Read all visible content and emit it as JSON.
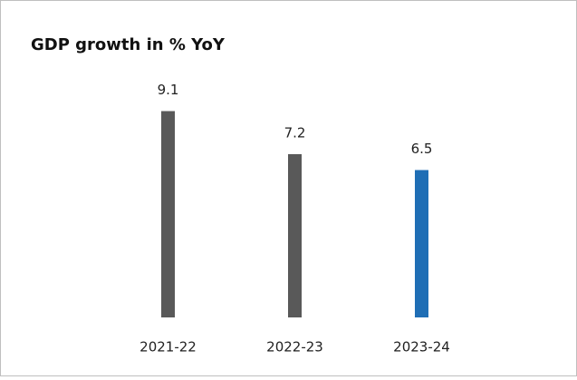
{
  "chart_data": {
    "type": "bar",
    "title": "GDP growth in % YoY",
    "categories": [
      "2021-22",
      "2022-23",
      "2023-24"
    ],
    "values": [
      9.1,
      7.2,
      6.5
    ],
    "colors": [
      "#595959",
      "#595959",
      "#1f6eb5"
    ]
  }
}
